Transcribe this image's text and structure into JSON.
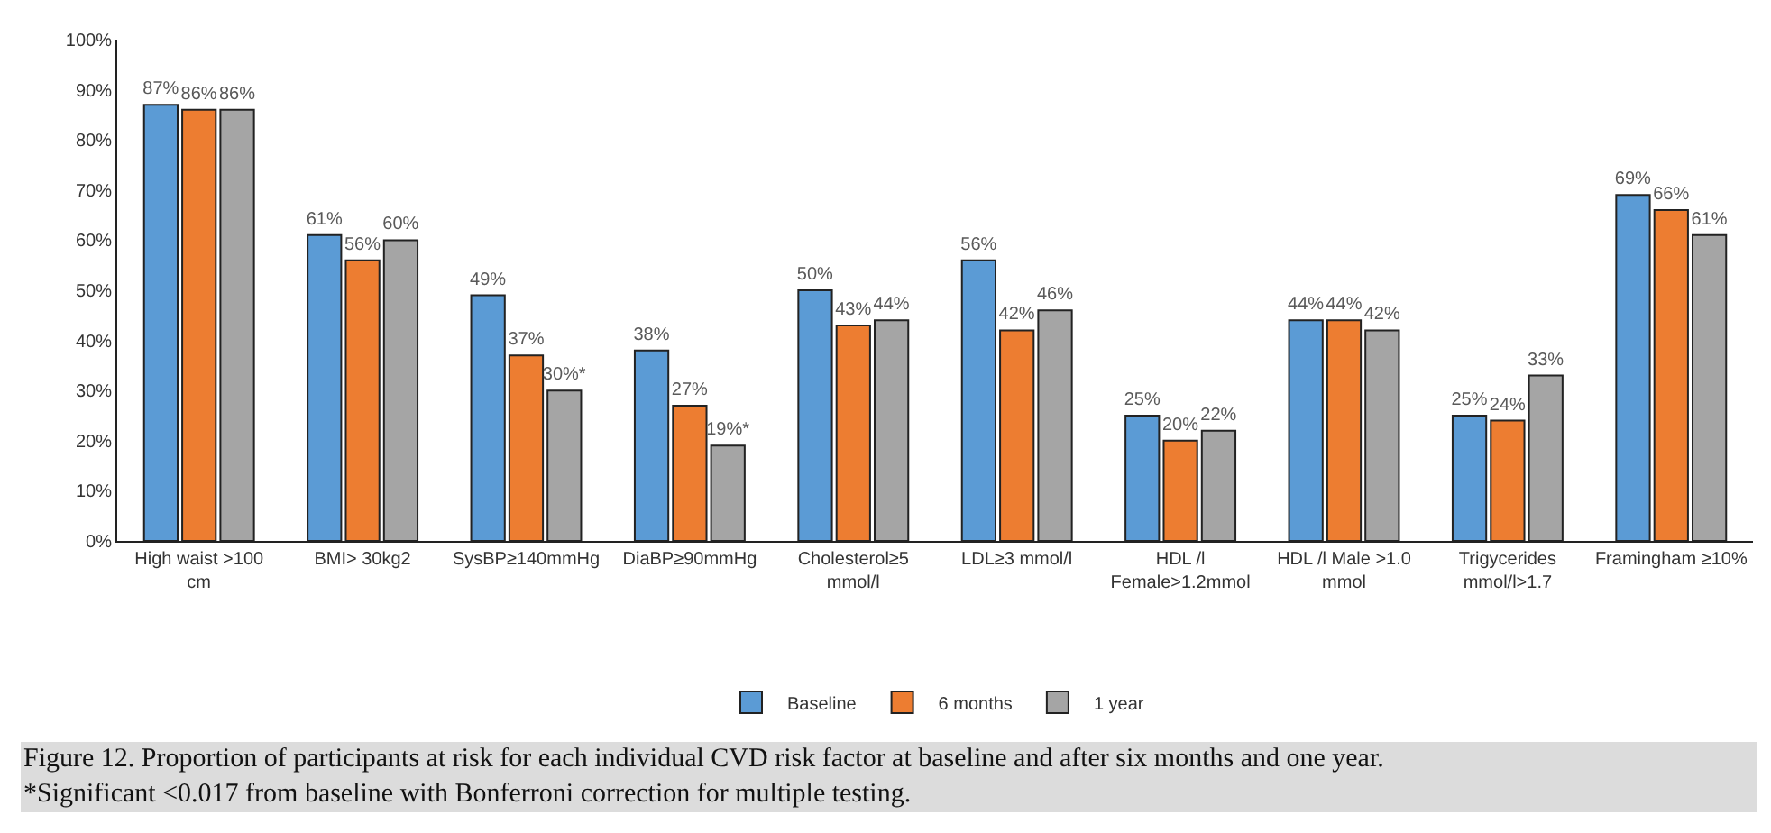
{
  "chart_data": {
    "type": "bar",
    "categories": [
      "High waist >100\ncm",
      "BMI> 30kg2",
      "SysBP≥140mmHg",
      "DiaBP≥90mmHg",
      "Cholesterol≥5\nmmol/l",
      "LDL≥3 mmol/l",
      "HDL /l\nFemale>1.2mmol",
      "HDL /l Male >1.0\nmmol",
      "Trigycerides\nmmol/l>1.7",
      "Framingham ≥10%"
    ],
    "series": [
      {
        "name": "Baseline",
        "color": "#5b9bd5",
        "values": [
          87,
          61,
          49,
          38,
          50,
          56,
          25,
          44,
          25,
          69
        ],
        "value_labels": [
          "87%",
          "61%",
          "49%",
          "38%",
          "50%",
          "56%",
          "25%",
          "44%",
          "25%",
          "69%"
        ]
      },
      {
        "name": "6 months",
        "color": "#ed7d31",
        "values": [
          86,
          56,
          37,
          27,
          43,
          42,
          20,
          44,
          24,
          66
        ],
        "value_labels": [
          "86%",
          "56%",
          "37%",
          "27%",
          "43%",
          "42%",
          "20%",
          "44%",
          "24%",
          "66%"
        ]
      },
      {
        "name": "1 year",
        "color": "#a5a5a5",
        "values": [
          86,
          60,
          30,
          19,
          44,
          46,
          22,
          42,
          33,
          61
        ],
        "value_labels": [
          "86%",
          "60%",
          "30%*",
          "19%*",
          "44%",
          "46%",
          "22%",
          "42%",
          "33%",
          "61%"
        ]
      }
    ],
    "ylim": [
      0,
      100
    ],
    "yticks": [
      {
        "value": 0,
        "label": "0%"
      },
      {
        "value": 10,
        "label": "10%"
      },
      {
        "value": 20,
        "label": "20%"
      },
      {
        "value": 30,
        "label": "30%"
      },
      {
        "value": 40,
        "label": "40%"
      },
      {
        "value": 50,
        "label": "50%"
      },
      {
        "value": 60,
        "label": "60%"
      },
      {
        "value": 70,
        "label": "70%"
      },
      {
        "value": 80,
        "label": "80%"
      },
      {
        "value": 90,
        "label": "90%"
      },
      {
        "value": 100,
        "label": "100%"
      }
    ],
    "legend": "bottom",
    "annotations": [
      "Figure 12. Proportion of participants at risk for each individual CVD risk factor at baseline and after six months and one year. *Significant <0.017 from baseline with Bonferroni correction for multiple testing."
    ]
  }
}
